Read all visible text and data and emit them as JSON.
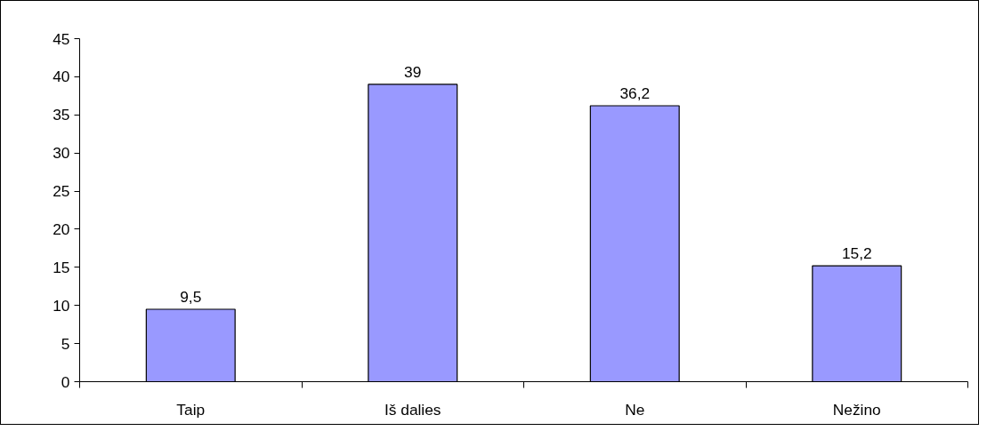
{
  "chart_data": {
    "type": "bar",
    "categories": [
      "Taip",
      "Iš dalies",
      "Ne",
      "Nežino"
    ],
    "values": [
      9.5,
      39,
      36.2,
      15.2
    ],
    "color": "#9999ff",
    "value_labels": [
      "9,5",
      "39",
      "36,2",
      "15,2"
    ],
    "ylim": [
      0,
      45
    ],
    "yticks": [
      0,
      5,
      10,
      15,
      20,
      25,
      30,
      35,
      40,
      45
    ],
    "grid": false
  }
}
